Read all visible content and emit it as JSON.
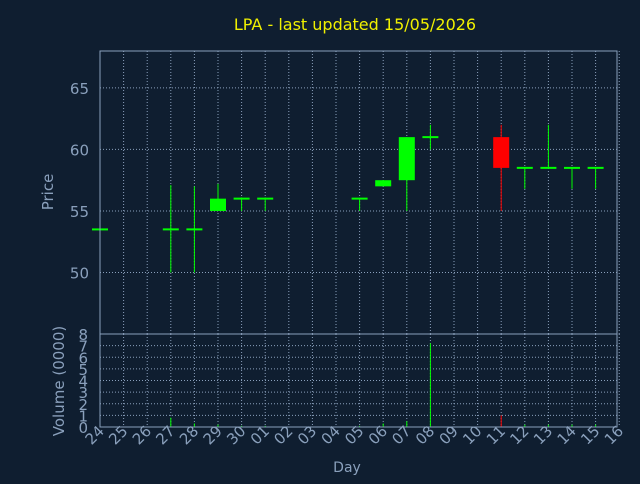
{
  "chart_data": {
    "type": "candlestick",
    "title": "LPA - last updated 15/05/2026",
    "xlabel": "Day",
    "price_panel": {
      "ylabel": "Price",
      "ylim": [
        45,
        68
      ],
      "yticks": [
        50,
        55,
        60,
        65
      ]
    },
    "volume_panel": {
      "ylabel": "Volume (0000)",
      "ylim": [
        0,
        8
      ],
      "yticks": [
        0,
        1,
        2,
        3,
        4,
        5,
        6,
        7,
        8
      ]
    },
    "x_tick_labels": [
      "24",
      "25",
      "26",
      "27",
      "28",
      "29",
      "30",
      "01",
      "02",
      "03",
      "04",
      "05",
      "06",
      "07",
      "08",
      "09",
      "10",
      "11",
      "12",
      "13",
      "14",
      "15",
      "16"
    ],
    "grid": true,
    "colors": {
      "background": "#0f1e30",
      "axis": "#8aa0bc",
      "grid": "#8aa0bc",
      "text": "#8aa0bc",
      "title": "#f0f000",
      "up": "#00ff00",
      "down": "#ff0000"
    },
    "candles": [
      {
        "day": "24",
        "open": 53.5,
        "high": 53.5,
        "low": 53.5,
        "close": 53.5,
        "volume": 0.1
      },
      {
        "day": "27",
        "open": 53.5,
        "high": 57.1,
        "low": 50.0,
        "close": 53.5,
        "volume": 0.8
      },
      {
        "day": "28",
        "open": 53.5,
        "high": 57.0,
        "low": 50.0,
        "close": 53.5,
        "volume": 0.3
      },
      {
        "day": "29",
        "open": 55.0,
        "high": 57.2,
        "low": 55.0,
        "close": 56.0,
        "volume": 0.2
      },
      {
        "day": "30",
        "open": 56.0,
        "high": 56.1,
        "low": 55.0,
        "close": 56.0,
        "volume": 0.1
      },
      {
        "day": "01",
        "open": 56.0,
        "high": 56.1,
        "low": 55.0,
        "close": 56.0,
        "volume": 0.1
      },
      {
        "day": "05",
        "open": 56.0,
        "high": 56.0,
        "low": 55.0,
        "close": 56.0,
        "volume": 0.1
      },
      {
        "day": "06",
        "open": 57.0,
        "high": 57.5,
        "low": 57.0,
        "close": 57.5,
        "volume": 0.3
      },
      {
        "day": "07",
        "open": 57.5,
        "high": 61.0,
        "low": 55.0,
        "close": 61.0,
        "volume": 0.5
      },
      {
        "day": "08",
        "open": 61.0,
        "high": 62.0,
        "low": 60.0,
        "close": 61.0,
        "volume": 7.2
      },
      {
        "day": "11",
        "open": 61.0,
        "high": 62.0,
        "low": 55.0,
        "close": 58.5,
        "volume": 1.0
      },
      {
        "day": "12",
        "open": 58.5,
        "high": 58.5,
        "low": 56.8,
        "close": 58.5,
        "volume": 0.2
      },
      {
        "day": "13",
        "open": 58.5,
        "high": 62.0,
        "low": 58.5,
        "close": 58.5,
        "volume": 0.2
      },
      {
        "day": "14",
        "open": 58.5,
        "high": 58.5,
        "low": 56.8,
        "close": 58.5,
        "volume": 0.2
      },
      {
        "day": "15",
        "open": 58.5,
        "high": 58.5,
        "low": 56.8,
        "close": 58.5,
        "volume": 0.2
      }
    ]
  }
}
